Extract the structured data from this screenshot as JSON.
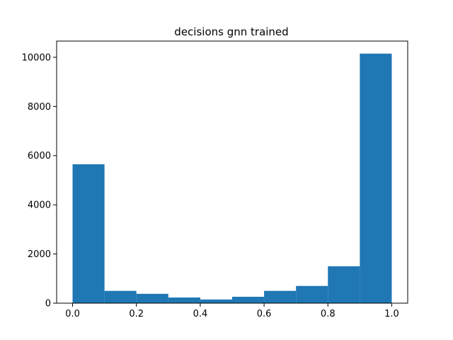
{
  "chart_data": {
    "type": "bar",
    "title": "decisions gnn trained",
    "xlabel": "",
    "ylabel": "",
    "bin_edges": [
      0.0,
      0.1,
      0.2,
      0.3,
      0.4,
      0.5,
      0.6,
      0.7,
      0.8,
      0.9,
      1.0
    ],
    "values": [
      5650,
      500,
      380,
      230,
      150,
      260,
      500,
      700,
      1500,
      10150
    ],
    "xlim": [
      -0.05,
      1.05
    ],
    "ylim": [
      0,
      10660
    ],
    "xticks": [
      0.0,
      0.2,
      0.4,
      0.6,
      0.8,
      1.0
    ],
    "xtick_labels": [
      "0.0",
      "0.2",
      "0.4",
      "0.6",
      "0.8",
      "1.0"
    ],
    "yticks": [
      0,
      2000,
      4000,
      6000,
      8000,
      10000
    ],
    "ytick_labels": [
      "0",
      "2000",
      "4000",
      "6000",
      "8000",
      "10000"
    ],
    "bar_color": "#1f77b4",
    "grid": false,
    "legend": "none"
  }
}
